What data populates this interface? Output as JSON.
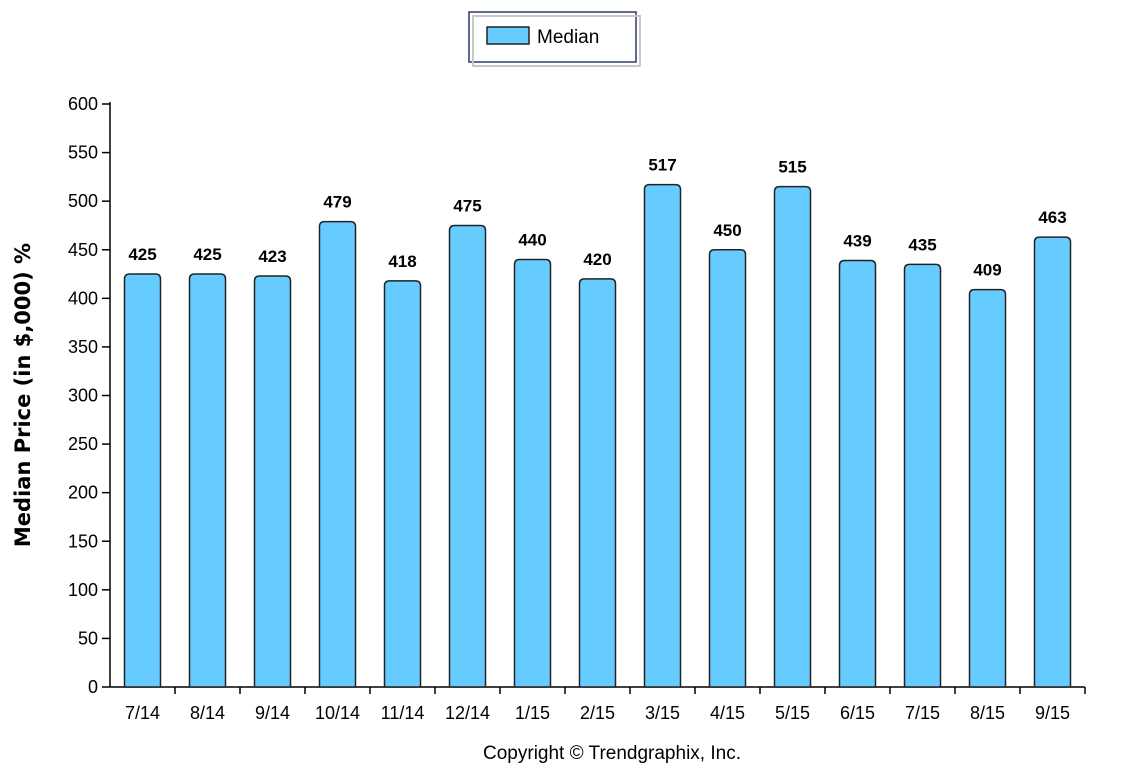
{
  "chart_data": {
    "type": "bar",
    "categories": [
      "7/14",
      "8/14",
      "9/14",
      "10/14",
      "11/14",
      "12/14",
      "1/15",
      "2/15",
      "3/15",
      "4/15",
      "5/15",
      "6/15",
      "7/15",
      "8/15",
      "9/15"
    ],
    "series": [
      {
        "name": "Median",
        "values": [
          425,
          425,
          423,
          479,
          418,
          475,
          440,
          420,
          517,
          450,
          515,
          439,
          435,
          409,
          463
        ]
      }
    ],
    "ylabel": "Median Price (in $,000) %",
    "xlabel": "",
    "ylim": [
      0,
      600
    ],
    "yticks": [
      0,
      50,
      100,
      150,
      200,
      250,
      300,
      350,
      400,
      450,
      500,
      550,
      600
    ],
    "grid": false,
    "legend": "top-center",
    "colors": {
      "bar_fill": "#66ccff",
      "bar_stroke": "#222222"
    }
  },
  "footer": {
    "copyright": "Copyright © Trendgraphix, Inc."
  }
}
